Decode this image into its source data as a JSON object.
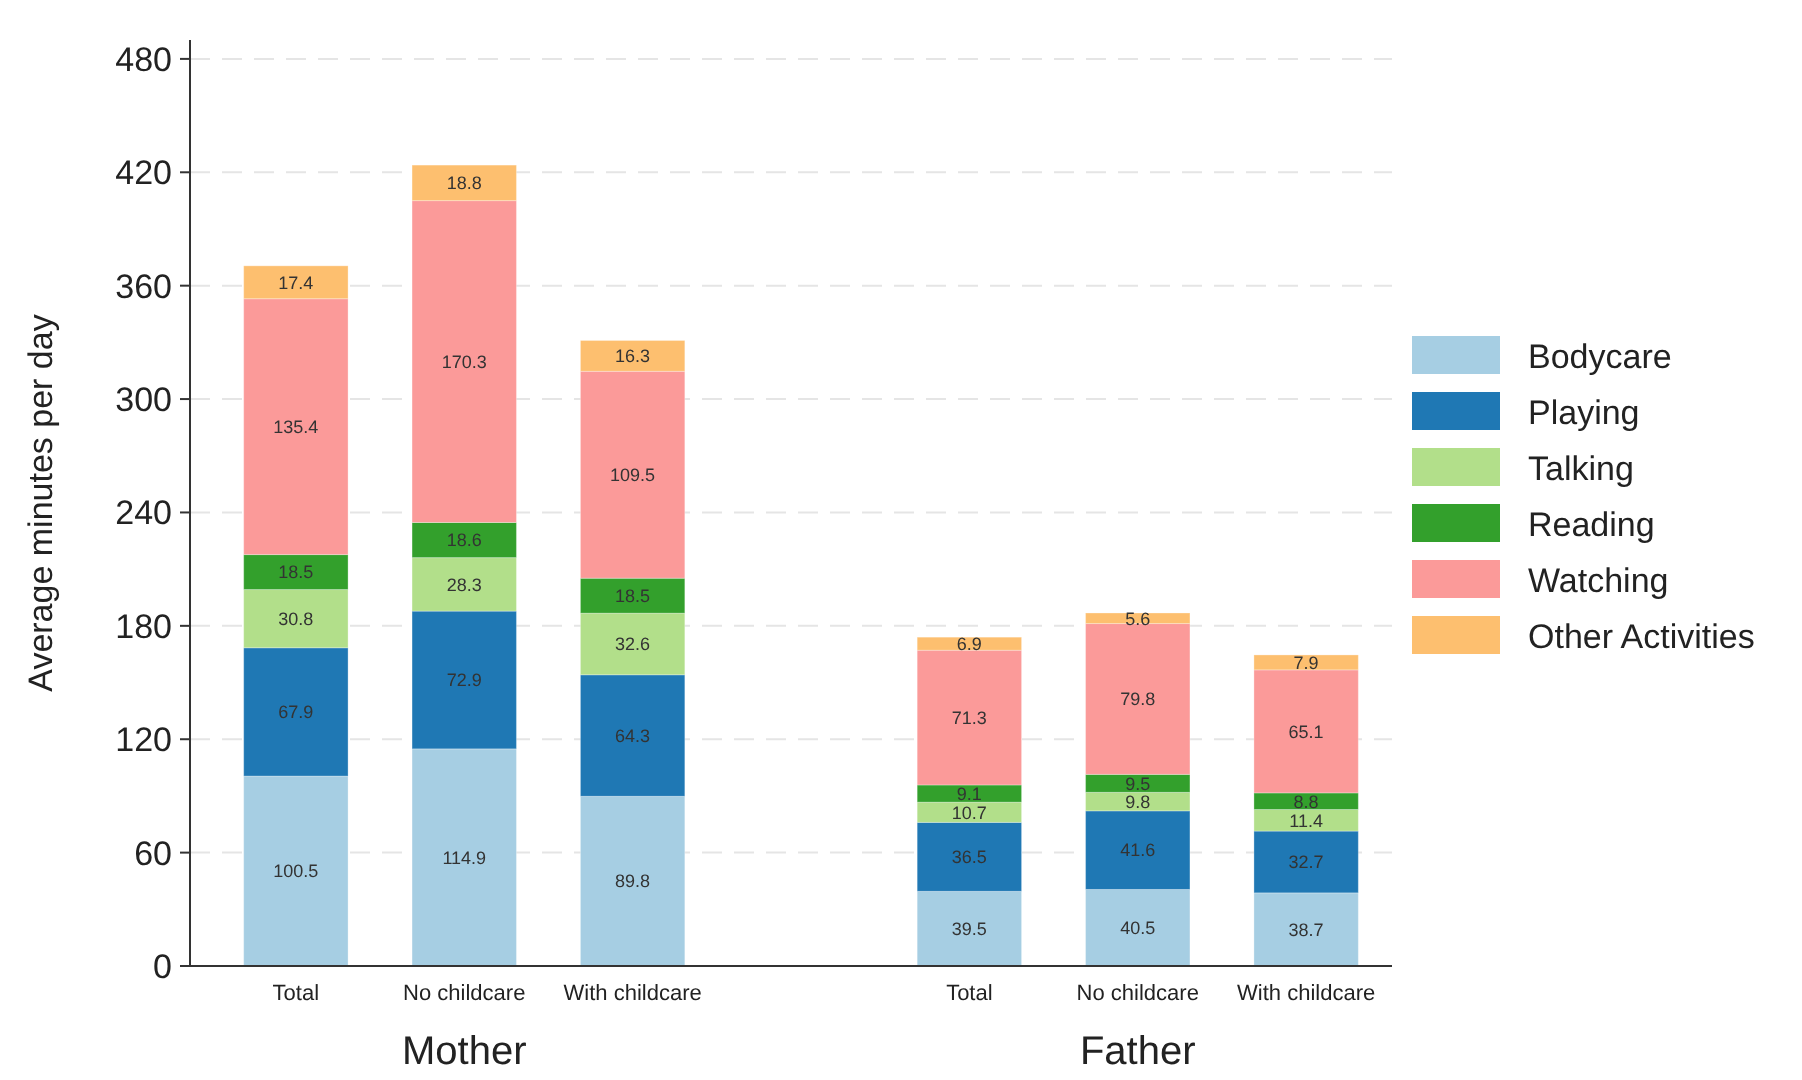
{
  "chart_data": {
    "type": "bar",
    "stacked": true,
    "ylabel": "Average minutes per day",
    "categories": [
      "Total",
      "No childcare",
      "With childcare",
      null,
      "Total",
      "No childcare",
      "With childcare"
    ],
    "series": [
      {
        "name": "Bodycare",
        "color": "#a6cee3",
        "values": [
          100.5,
          114.9,
          89.8,
          null,
          39.5,
          40.5,
          38.7
        ]
      },
      {
        "name": "Playing",
        "color": "#1f78b4",
        "values": [
          67.9,
          72.9,
          64.3,
          null,
          36.5,
          41.6,
          32.7
        ]
      },
      {
        "name": "Talking",
        "color": "#b2df8a",
        "values": [
          30.8,
          28.3,
          32.6,
          null,
          10.7,
          9.8,
          11.4
        ]
      },
      {
        "name": "Reading",
        "color": "#33a02c",
        "values": [
          18.5,
          18.6,
          18.5,
          null,
          9.1,
          9.5,
          8.8
        ]
      },
      {
        "name": "Watching",
        "color": "#fb9a99",
        "values": [
          135.4,
          170.3,
          109.5,
          null,
          71.3,
          79.8,
          65.1
        ]
      },
      {
        "name": "Other Activities",
        "color": "#fdbf6f",
        "values": [
          17.4,
          18.8,
          16.3,
          null,
          6.9,
          5.6,
          7.9
        ]
      }
    ],
    "ylim": [
      0,
      490
    ],
    "yticks": [
      0,
      60,
      120,
      180,
      240,
      300,
      360,
      420,
      480
    ],
    "grid": "y",
    "legend": "right",
    "data_labels": true,
    "annotations": [
      "Mother",
      "Father"
    ]
  }
}
